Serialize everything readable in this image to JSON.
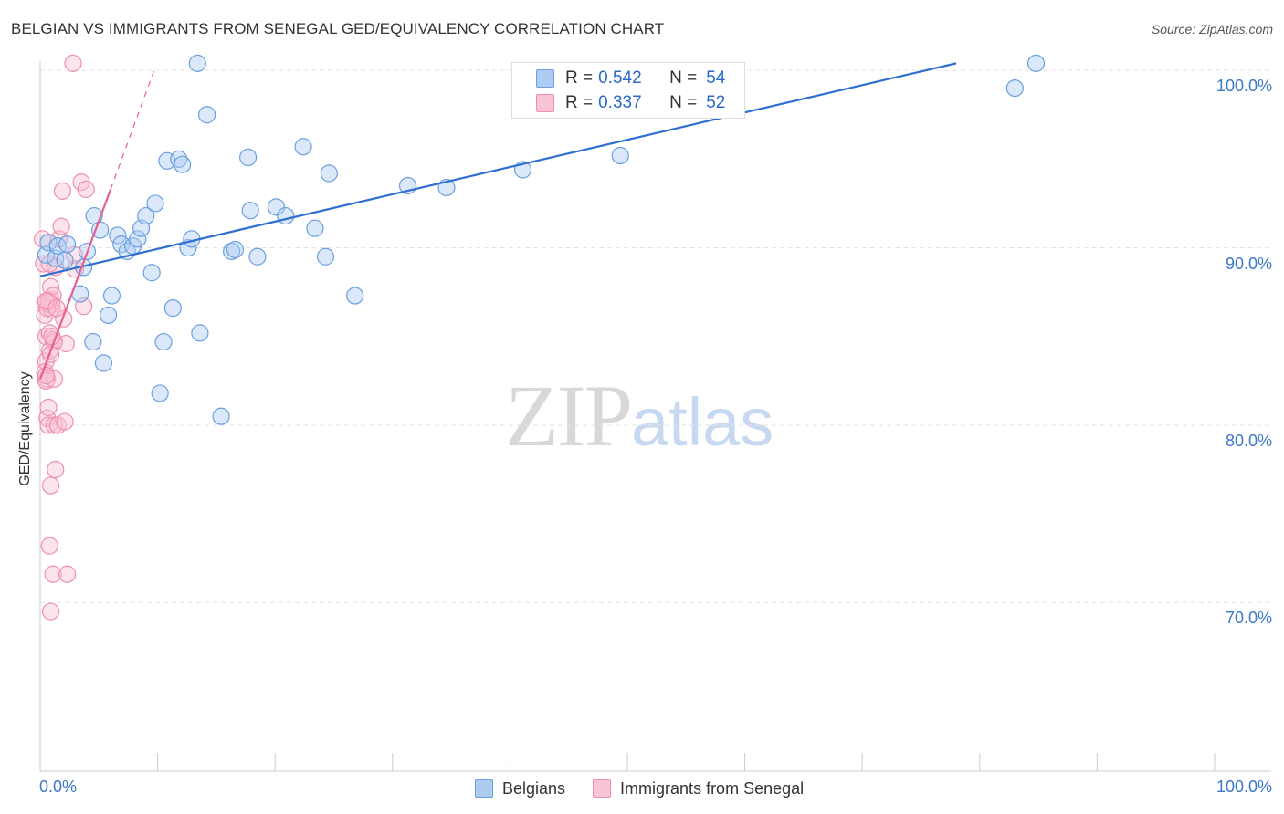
{
  "title": "BELGIAN VS IMMIGRANTS FROM SENEGAL GED/EQUIVALENCY CORRELATION CHART",
  "source": "Source: ZipAtlas.com",
  "watermark": {
    "zip": "ZIP",
    "atlas": "atlas"
  },
  "legend": {
    "r_label": "R =",
    "n_label": "N =",
    "belgians": {
      "r": "0.542",
      "n": "54"
    },
    "senegal": {
      "r": "0.337",
      "n": "52"
    }
  },
  "colors": {
    "blue_fill": "#aecbf2",
    "blue_stroke": "#6b9fe0",
    "blue_line": "#2f6fcf",
    "pink_fill": "#f9c4d3",
    "pink_stroke": "#ef8fae",
    "pink_line": "#e8608f",
    "grid": "#e3e3e3",
    "axis_text": "#3a78c9"
  },
  "chart_data": {
    "type": "scatter",
    "title": "BELGIAN VS IMMIGRANTS FROM SENEGAL GED/EQUIVALENCY CORRELATION CHART",
    "xlabel": "",
    "ylabel": "GED/Equivalency",
    "xlim": [
      0,
      100
    ],
    "ylim": [
      60.5,
      101.5
    ],
    "x_tick_labels": [
      "0.0%",
      "100.0%"
    ],
    "y_ticks": [
      70,
      80,
      90,
      100
    ],
    "y_tick_labels": [
      "70.0%",
      "80.0%",
      "90.0%",
      "100.0%"
    ],
    "grid": true,
    "legend": [
      "Belgians",
      "Immigrants from Senegal"
    ],
    "series": [
      {
        "name": "Belgians",
        "color": "#aecbf2",
        "points": [
          [
            0.5,
            89.6
          ],
          [
            0.7,
            90.3
          ],
          [
            1.3,
            89.4
          ],
          [
            1.5,
            90.1
          ],
          [
            2.1,
            89.3
          ],
          [
            2.3,
            90.2
          ],
          [
            3.4,
            87.4
          ],
          [
            3.7,
            88.9
          ],
          [
            4.0,
            89.8
          ],
          [
            4.5,
            84.7
          ],
          [
            4.6,
            91.8
          ],
          [
            5.1,
            91.0
          ],
          [
            5.4,
            83.5
          ],
          [
            5.8,
            86.2
          ],
          [
            6.1,
            87.3
          ],
          [
            6.6,
            90.7
          ],
          [
            6.9,
            90.2
          ],
          [
            7.4,
            89.8
          ],
          [
            7.9,
            90.1
          ],
          [
            8.3,
            90.5
          ],
          [
            8.6,
            91.1
          ],
          [
            9.0,
            91.8
          ],
          [
            9.5,
            88.6
          ],
          [
            9.8,
            92.5
          ],
          [
            10.2,
            81.8
          ],
          [
            10.5,
            84.7
          ],
          [
            10.8,
            94.9
          ],
          [
            11.3,
            86.6
          ],
          [
            11.8,
            95.0
          ],
          [
            12.1,
            94.7
          ],
          [
            12.6,
            90.0
          ],
          [
            12.9,
            90.5
          ],
          [
            13.6,
            85.2
          ],
          [
            13.4,
            100.4
          ],
          [
            14.2,
            97.5
          ],
          [
            15.4,
            80.5
          ],
          [
            16.3,
            89.8
          ],
          [
            16.6,
            89.9
          ],
          [
            17.7,
            95.1
          ],
          [
            17.9,
            92.1
          ],
          [
            18.5,
            89.5
          ],
          [
            20.1,
            92.3
          ],
          [
            20.9,
            91.8
          ],
          [
            22.4,
            95.7
          ],
          [
            23.4,
            91.1
          ],
          [
            24.3,
            89.5
          ],
          [
            24.6,
            94.2
          ],
          [
            26.8,
            87.3
          ],
          [
            31.3,
            93.5
          ],
          [
            34.6,
            93.4
          ],
          [
            41.1,
            94.4
          ],
          [
            49.4,
            95.2
          ],
          [
            84.8,
            100.4
          ],
          [
            83.0,
            99.0
          ]
        ]
      },
      {
        "name": "Immigrants from Senegal",
        "color": "#f9c4d3",
        "points": [
          [
            0.2,
            90.5
          ],
          [
            0.3,
            89.1
          ],
          [
            0.4,
            86.9
          ],
          [
            0.4,
            86.2
          ],
          [
            0.5,
            85.0
          ],
          [
            0.5,
            83.6
          ],
          [
            0.4,
            83.0
          ],
          [
            0.6,
            82.6
          ],
          [
            0.5,
            82.5
          ],
          [
            0.6,
            80.4
          ],
          [
            0.7,
            80.0
          ],
          [
            0.7,
            81.0
          ],
          [
            0.8,
            85.2
          ],
          [
            0.8,
            84.2
          ],
          [
            0.8,
            86.8
          ],
          [
            0.9,
            87.1
          ],
          [
            0.9,
            87.8
          ],
          [
            1.0,
            86.8
          ],
          [
            1.0,
            86.5
          ],
          [
            1.1,
            87.3
          ],
          [
            1.1,
            84.8
          ],
          [
            1.2,
            82.6
          ],
          [
            1.2,
            80.0
          ],
          [
            1.3,
            77.5
          ],
          [
            0.9,
            76.6
          ],
          [
            0.8,
            73.2
          ],
          [
            1.1,
            71.6
          ],
          [
            0.9,
            69.5
          ],
          [
            1.5,
            80.0
          ],
          [
            1.6,
            90.5
          ],
          [
            1.8,
            91.2
          ],
          [
            1.9,
            93.2
          ],
          [
            2.0,
            86.0
          ],
          [
            2.1,
            80.2
          ],
          [
            2.2,
            84.6
          ],
          [
            2.3,
            71.6
          ],
          [
            2.9,
            89.6
          ],
          [
            3.0,
            88.8
          ],
          [
            3.5,
            93.7
          ],
          [
            3.7,
            86.7
          ],
          [
            3.9,
            93.3
          ],
          [
            2.8,
            100.4
          ],
          [
            0.6,
            86.6
          ],
          [
            0.7,
            87.0
          ],
          [
            1.2,
            84.7
          ],
          [
            0.5,
            87.0
          ],
          [
            0.5,
            82.8
          ],
          [
            1.0,
            85.0
          ],
          [
            0.9,
            84.0
          ],
          [
            1.3,
            88.9
          ],
          [
            0.8,
            89.1
          ],
          [
            1.4,
            86.6
          ]
        ]
      }
    ],
    "trend_lines": [
      {
        "series": "Belgians",
        "from": [
          0,
          88.4
        ],
        "to": [
          78.0,
          100.4
        ],
        "style": "solid"
      },
      {
        "series": "Immigrants from Senegal",
        "from": [
          0,
          82.6
        ],
        "to": [
          6.0,
          93.3
        ],
        "style": "solid"
      },
      {
        "series": "Immigrants from Senegal",
        "from": [
          6.0,
          93.3
        ],
        "to": [
          9.7,
          100.0
        ],
        "style": "dashed"
      }
    ]
  }
}
